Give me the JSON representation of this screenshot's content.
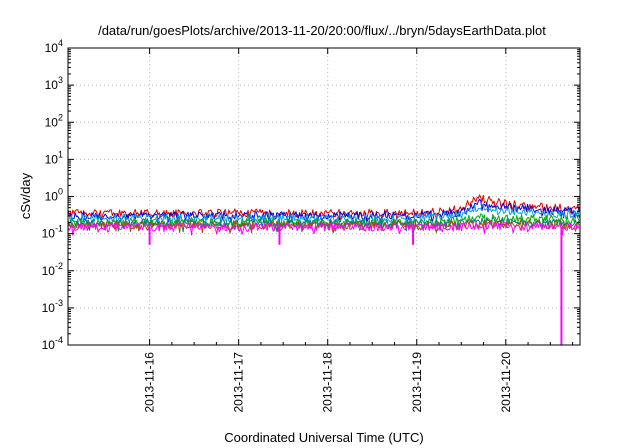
{
  "chart_data": {
    "type": "line",
    "title": "/data/run/goesPlots/archive/2013-11-20/20:00/flux/../bryn/5daysEarthData.plot",
    "xlabel": "Coordinated Universal Time (UTC)",
    "ylabel": "cSv/day",
    "y_scale": "log",
    "ylim": [
      0.0001,
      10000
    ],
    "xlim": [
      "2013-11-15T02:00",
      "2013-11-20T20:00"
    ],
    "grid": true,
    "legend": "none",
    "y_ticks": [
      {
        "value": 0.0001,
        "base": "10",
        "exp": "-4"
      },
      {
        "value": 0.001,
        "base": "10",
        "exp": "-3"
      },
      {
        "value": 0.01,
        "base": "10",
        "exp": "-2"
      },
      {
        "value": 0.1,
        "base": "10",
        "exp": "-1"
      },
      {
        "value": 1,
        "base": "10",
        "exp": "0"
      },
      {
        "value": 10,
        "base": "10",
        "exp": "1"
      },
      {
        "value": 100,
        "base": "10",
        "exp": "2"
      },
      {
        "value": 1000,
        "base": "10",
        "exp": "3"
      },
      {
        "value": 10000,
        "base": "10",
        "exp": "4"
      }
    ],
    "x_ticks": [
      {
        "value": "2013-11-16T00:00",
        "label": "2013-11-16"
      },
      {
        "value": "2013-11-17T00:00",
        "label": "2013-11-17"
      },
      {
        "value": "2013-11-18T00:00",
        "label": "2013-11-18"
      },
      {
        "value": "2013-11-19T00:00",
        "label": "2013-11-19"
      },
      {
        "value": "2013-11-20T00:00",
        "label": "2013-11-20"
      }
    ],
    "series": [
      {
        "color": "#e00000",
        "x": [
          "2013-11-15T02:00",
          "2013-11-16T00:00",
          "2013-11-17T00:00",
          "2013-11-18T00:00",
          "2013-11-19T00:00",
          "2013-11-19T12:00",
          "2013-11-19T16:00",
          "2013-11-20T00:00",
          "2013-11-20T12:00",
          "2013-11-20T20:00"
        ],
        "y": [
          0.35,
          0.35,
          0.36,
          0.35,
          0.36,
          0.45,
          0.9,
          0.65,
          0.5,
          0.5
        ]
      },
      {
        "color": "#0000e0",
        "x": [
          "2013-11-15T02:00",
          "2013-11-16T00:00",
          "2013-11-17T00:00",
          "2013-11-18T00:00",
          "2013-11-19T00:00",
          "2013-11-19T12:00",
          "2013-11-19T16:00",
          "2013-11-20T00:00",
          "2013-11-20T12:00",
          "2013-11-20T20:00"
        ],
        "y": [
          0.3,
          0.3,
          0.31,
          0.3,
          0.3,
          0.38,
          0.7,
          0.55,
          0.42,
          0.42
        ]
      },
      {
        "color": "#00a0e0",
        "x": [
          "2013-11-15T02:00",
          "2013-11-16T00:00",
          "2013-11-17T00:00",
          "2013-11-18T00:00",
          "2013-11-19T00:00",
          "2013-11-19T12:00",
          "2013-11-19T16:00",
          "2013-11-20T00:00",
          "2013-11-20T12:00",
          "2013-11-20T20:00"
        ],
        "y": [
          0.26,
          0.26,
          0.27,
          0.26,
          0.26,
          0.32,
          0.5,
          0.42,
          0.34,
          0.34
        ]
      },
      {
        "color": "#00b000",
        "x": [
          "2013-11-15T02:00",
          "2013-11-16T00:00",
          "2013-11-17T00:00",
          "2013-11-18T00:00",
          "2013-11-19T00:00",
          "2013-11-19T12:00",
          "2013-11-19T16:00",
          "2013-11-20T00:00",
          "2013-11-20T12:00",
          "2013-11-20T20:00"
        ],
        "y": [
          0.2,
          0.2,
          0.21,
          0.2,
          0.2,
          0.22,
          0.28,
          0.26,
          0.24,
          0.24
        ]
      },
      {
        "color": "#008080",
        "x": [
          "2013-11-15T02:00",
          "2013-11-16T00:00",
          "2013-11-17T00:00",
          "2013-11-18T00:00",
          "2013-11-19T00:00",
          "2013-11-19T12:00",
          "2013-11-19T16:00",
          "2013-11-20T00:00",
          "2013-11-20T12:00",
          "2013-11-20T20:00"
        ],
        "y": [
          0.19,
          0.19,
          0.19,
          0.19,
          0.19,
          0.2,
          0.22,
          0.21,
          0.2,
          0.2
        ]
      },
      {
        "color": "#a05000",
        "x": [
          "2013-11-15T02:00",
          "2013-11-16T00:00",
          "2013-11-17T00:00",
          "2013-11-18T00:00",
          "2013-11-19T00:00",
          "2013-11-19T12:00",
          "2013-11-19T16:00",
          "2013-11-20T00:00",
          "2013-11-20T12:00",
          "2013-11-20T20:00"
        ],
        "y": [
          0.17,
          0.17,
          0.17,
          0.17,
          0.17,
          0.17,
          0.18,
          0.18,
          0.17,
          0.17
        ]
      },
      {
        "color": "#ff00ff",
        "x": [
          "2013-11-15T02:00",
          "2013-11-16T00:00",
          "2013-11-17T00:00",
          "2013-11-18T00:00",
          "2013-11-19T00:00",
          "2013-11-19T12:00",
          "2013-11-19T16:00",
          "2013-11-20T00:00",
          "2013-11-20T12:00",
          "2013-11-20T20:00"
        ],
        "y": [
          0.15,
          0.15,
          0.15,
          0.15,
          0.15,
          0.15,
          0.16,
          0.16,
          0.15,
          0.15
        ],
        "dips": [
          {
            "x": "2013-11-16T00:00",
            "y": 0.05
          },
          {
            "x": "2013-11-17T11:00",
            "y": 0.05
          },
          {
            "x": "2013-11-18T23:00",
            "y": 0.05
          },
          {
            "x": "2013-11-20T15:00",
            "y": 0.0001
          }
        ]
      }
    ]
  }
}
